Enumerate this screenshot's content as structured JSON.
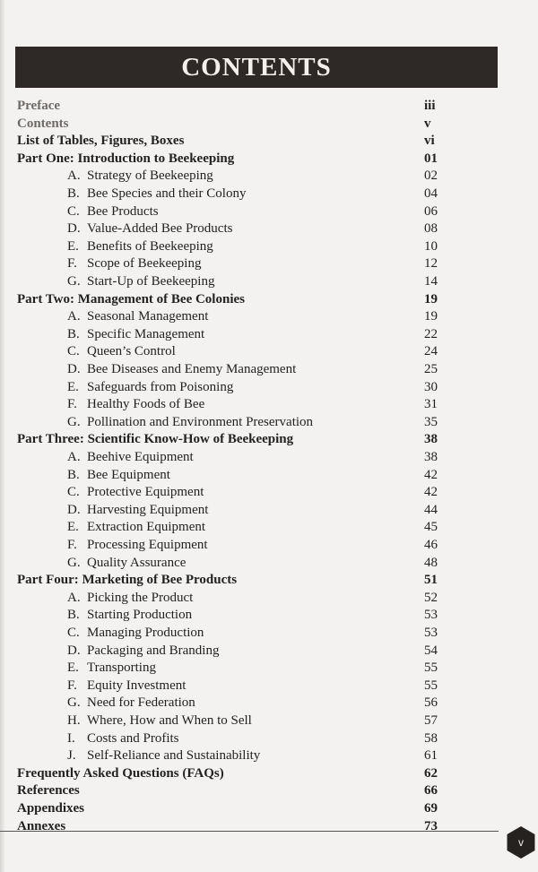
{
  "title": "CONTENTS",
  "page_number": "v",
  "entries": [
    {
      "type": "head",
      "faded": true,
      "label": "Preface",
      "page": "iii"
    },
    {
      "type": "head",
      "faded": true,
      "label": "Contents",
      "page": "v"
    },
    {
      "type": "head",
      "label": "List of Tables, Figures, Boxes",
      "page": "vi"
    },
    {
      "type": "head",
      "label": "Part One: Introduction to Beekeeping",
      "page": "01"
    },
    {
      "type": "sub",
      "letter": "A.",
      "label": "Strategy of Beekeeping",
      "page": "02"
    },
    {
      "type": "sub",
      "letter": "B.",
      "label": "Bee Species and their Colony",
      "page": "04"
    },
    {
      "type": "sub",
      "letter": "C.",
      "label": "Bee Products",
      "page": "06"
    },
    {
      "type": "sub",
      "letter": "D.",
      "label": "Value-Added Bee Products",
      "page": "08"
    },
    {
      "type": "sub",
      "letter": "E.",
      "label": "Benefits of Beekeeping",
      "page": "10"
    },
    {
      "type": "sub",
      "letter": "F.",
      "label": "Scope of Beekeeping",
      "page": "12"
    },
    {
      "type": "sub",
      "letter": "G.",
      "label": "Start-Up of Beekeeping",
      "page": "14"
    },
    {
      "type": "head",
      "label": "Part Two: Management of Bee Colonies",
      "page": "19"
    },
    {
      "type": "sub",
      "letter": "A.",
      "label": "Seasonal Management",
      "page": "19"
    },
    {
      "type": "sub",
      "letter": "B.",
      "label": "Specific Management",
      "page": "22"
    },
    {
      "type": "sub",
      "letter": "C.",
      "label": "Queen’s Control",
      "page": "24"
    },
    {
      "type": "sub",
      "letter": "D.",
      "label": "Bee Diseases and Enemy Management",
      "page": "25"
    },
    {
      "type": "sub",
      "letter": "E.",
      "label": "Safeguards from Poisoning",
      "page": "30"
    },
    {
      "type": "sub",
      "letter": "F.",
      "label": "Healthy Foods of Bee",
      "page": "31"
    },
    {
      "type": "sub",
      "letter": "G.",
      "label": "Pollination and Environment Preservation",
      "page": "35"
    },
    {
      "type": "head",
      "label": "Part Three:  Scientific Know-How of Beekeeping",
      "page": "38"
    },
    {
      "type": "sub",
      "letter": "A.",
      "label": "Beehive Equipment",
      "page": "38"
    },
    {
      "type": "sub",
      "letter": "B.",
      "label": "Bee Equipment",
      "page": "42"
    },
    {
      "type": "sub",
      "letter": "C.",
      "label": "Protective Equipment",
      "page": "42"
    },
    {
      "type": "sub",
      "letter": "D.",
      "label": "Harvesting Equipment",
      "page": "44"
    },
    {
      "type": "sub",
      "letter": "E.",
      "label": "Extraction Equipment",
      "page": "45"
    },
    {
      "type": "sub",
      "letter": "F.",
      "label": "Processing Equipment",
      "page": "46"
    },
    {
      "type": "sub",
      "letter": "G.",
      "label": "Quality Assurance",
      "page": "48"
    },
    {
      "type": "head",
      "label": "Part Four: Marketing of Bee Products",
      "page": "51"
    },
    {
      "type": "sub",
      "letter": "A.",
      "label": "Picking the Product",
      "page": "52"
    },
    {
      "type": "sub",
      "letter": "B.",
      "label": "Starting Production",
      "page": "53"
    },
    {
      "type": "sub",
      "letter": "C.",
      "label": "Managing Production",
      "page": "53"
    },
    {
      "type": "sub",
      "letter": "D.",
      "label": "Packaging and Branding",
      "page": "54"
    },
    {
      "type": "sub",
      "letter": "E.",
      "label": "Transporting",
      "page": "55"
    },
    {
      "type": "sub",
      "letter": "F.",
      "label": "Equity Investment",
      "page": "55"
    },
    {
      "type": "sub",
      "letter": "G.",
      "label": "Need for Federation",
      "page": "56"
    },
    {
      "type": "sub",
      "letter": "H.",
      "label": "Where, How and When to Sell",
      "page": "57"
    },
    {
      "type": "sub",
      "letter": "I.",
      "label": "Costs and Profits",
      "page": "58"
    },
    {
      "type": "sub",
      "letter": "J.",
      "label": "Self-Reliance and Sustainability",
      "page": "61"
    },
    {
      "type": "head",
      "label": "Frequently Asked Questions (FAQs)",
      "page": "62"
    },
    {
      "type": "head",
      "label": "References",
      "page": "66"
    },
    {
      "type": "head",
      "label": "Appendixes",
      "page": "69"
    },
    {
      "type": "head",
      "label": "Annexes",
      "page": "73"
    }
  ]
}
